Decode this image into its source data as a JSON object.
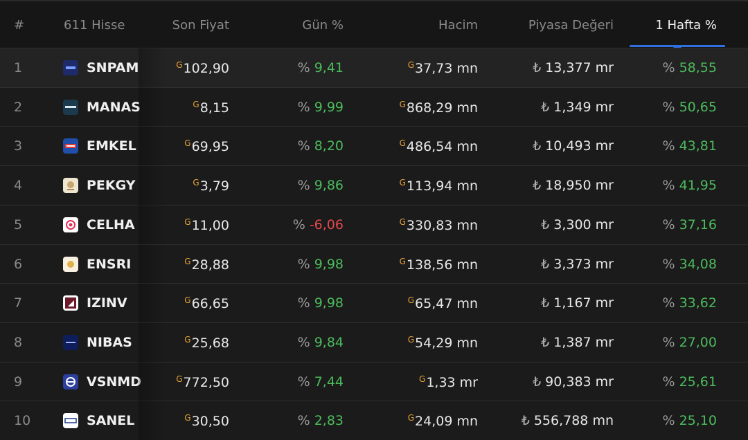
{
  "columns": {
    "rank": "#",
    "name": "611 Hisse",
    "price": "Son Fiyat",
    "day": "Gün %",
    "volume": "Hacim",
    "mcap": "Piyasa Değeri",
    "week": "1 Hafta %"
  },
  "rows": [
    {
      "rank": "1",
      "symbol": "SNPAM",
      "price": "102,90",
      "day_pct": "9,41",
      "day_dir": "pos",
      "volume": "37,73 mn",
      "mcap": "13,377 mr",
      "week_pct": "58,55",
      "logo": "snpam-logo"
    },
    {
      "rank": "2",
      "symbol": "MANAS",
      "price": "8,15",
      "day_pct": "9,99",
      "day_dir": "pos",
      "volume": "868,29 mn",
      "mcap": "1,349 mr",
      "week_pct": "50,65",
      "logo": "manas-logo"
    },
    {
      "rank": "3",
      "symbol": "EMKEL",
      "price": "69,95",
      "day_pct": "8,20",
      "day_dir": "pos",
      "volume": "486,54 mn",
      "mcap": "10,493 mr",
      "week_pct": "43,81",
      "logo": "emkel-logo"
    },
    {
      "rank": "4",
      "symbol": "PEKGY",
      "price": "3,79",
      "day_pct": "9,86",
      "day_dir": "pos",
      "volume": "113,94 mn",
      "mcap": "18,950 mr",
      "week_pct": "41,95",
      "logo": "pekgy-logo"
    },
    {
      "rank": "5",
      "symbol": "CELHA",
      "price": "11,00",
      "day_pct": "-6,06",
      "day_dir": "neg",
      "volume": "330,83 mn",
      "mcap": "3,300 mr",
      "week_pct": "37,16",
      "logo": "celha-logo"
    },
    {
      "rank": "6",
      "symbol": "ENSRI",
      "price": "28,88",
      "day_pct": "9,98",
      "day_dir": "pos",
      "volume": "138,56 mn",
      "mcap": "3,373 mr",
      "week_pct": "34,08",
      "logo": "ensri-logo"
    },
    {
      "rank": "7",
      "symbol": "IZINV",
      "price": "66,65",
      "day_pct": "9,98",
      "day_dir": "pos",
      "volume": "65,47 mn",
      "mcap": "1,167 mr",
      "week_pct": "33,62",
      "logo": "izinv-logo"
    },
    {
      "rank": "8",
      "symbol": "NIBAS",
      "price": "25,68",
      "day_pct": "9,84",
      "day_dir": "pos",
      "volume": "54,29 mn",
      "mcap": "1,387 mr",
      "week_pct": "27,00",
      "logo": "nibas-logo"
    },
    {
      "rank": "9",
      "symbol": "VSNMD",
      "price": "772,50",
      "day_pct": "7,44",
      "day_dir": "pos",
      "volume": "1,33 mr",
      "mcap": "90,383 mr",
      "week_pct": "25,61",
      "logo": "vsnmd-logo"
    },
    {
      "rank": "10",
      "symbol": "SANEL",
      "price": "30,50",
      "day_pct": "2,83",
      "day_dir": "pos",
      "volume": "24,09 mn",
      "mcap": "556,788 mn",
      "week_pct": "25,10",
      "logo": "sanel-logo"
    }
  ],
  "symbols": {
    "currency_g": "G",
    "percent": "%",
    "lira": "₺"
  },
  "colors": {
    "positive": "#4cbb5c",
    "negative": "#e5484d",
    "gold": "#e8a33a",
    "accent": "#2f6fe0"
  }
}
